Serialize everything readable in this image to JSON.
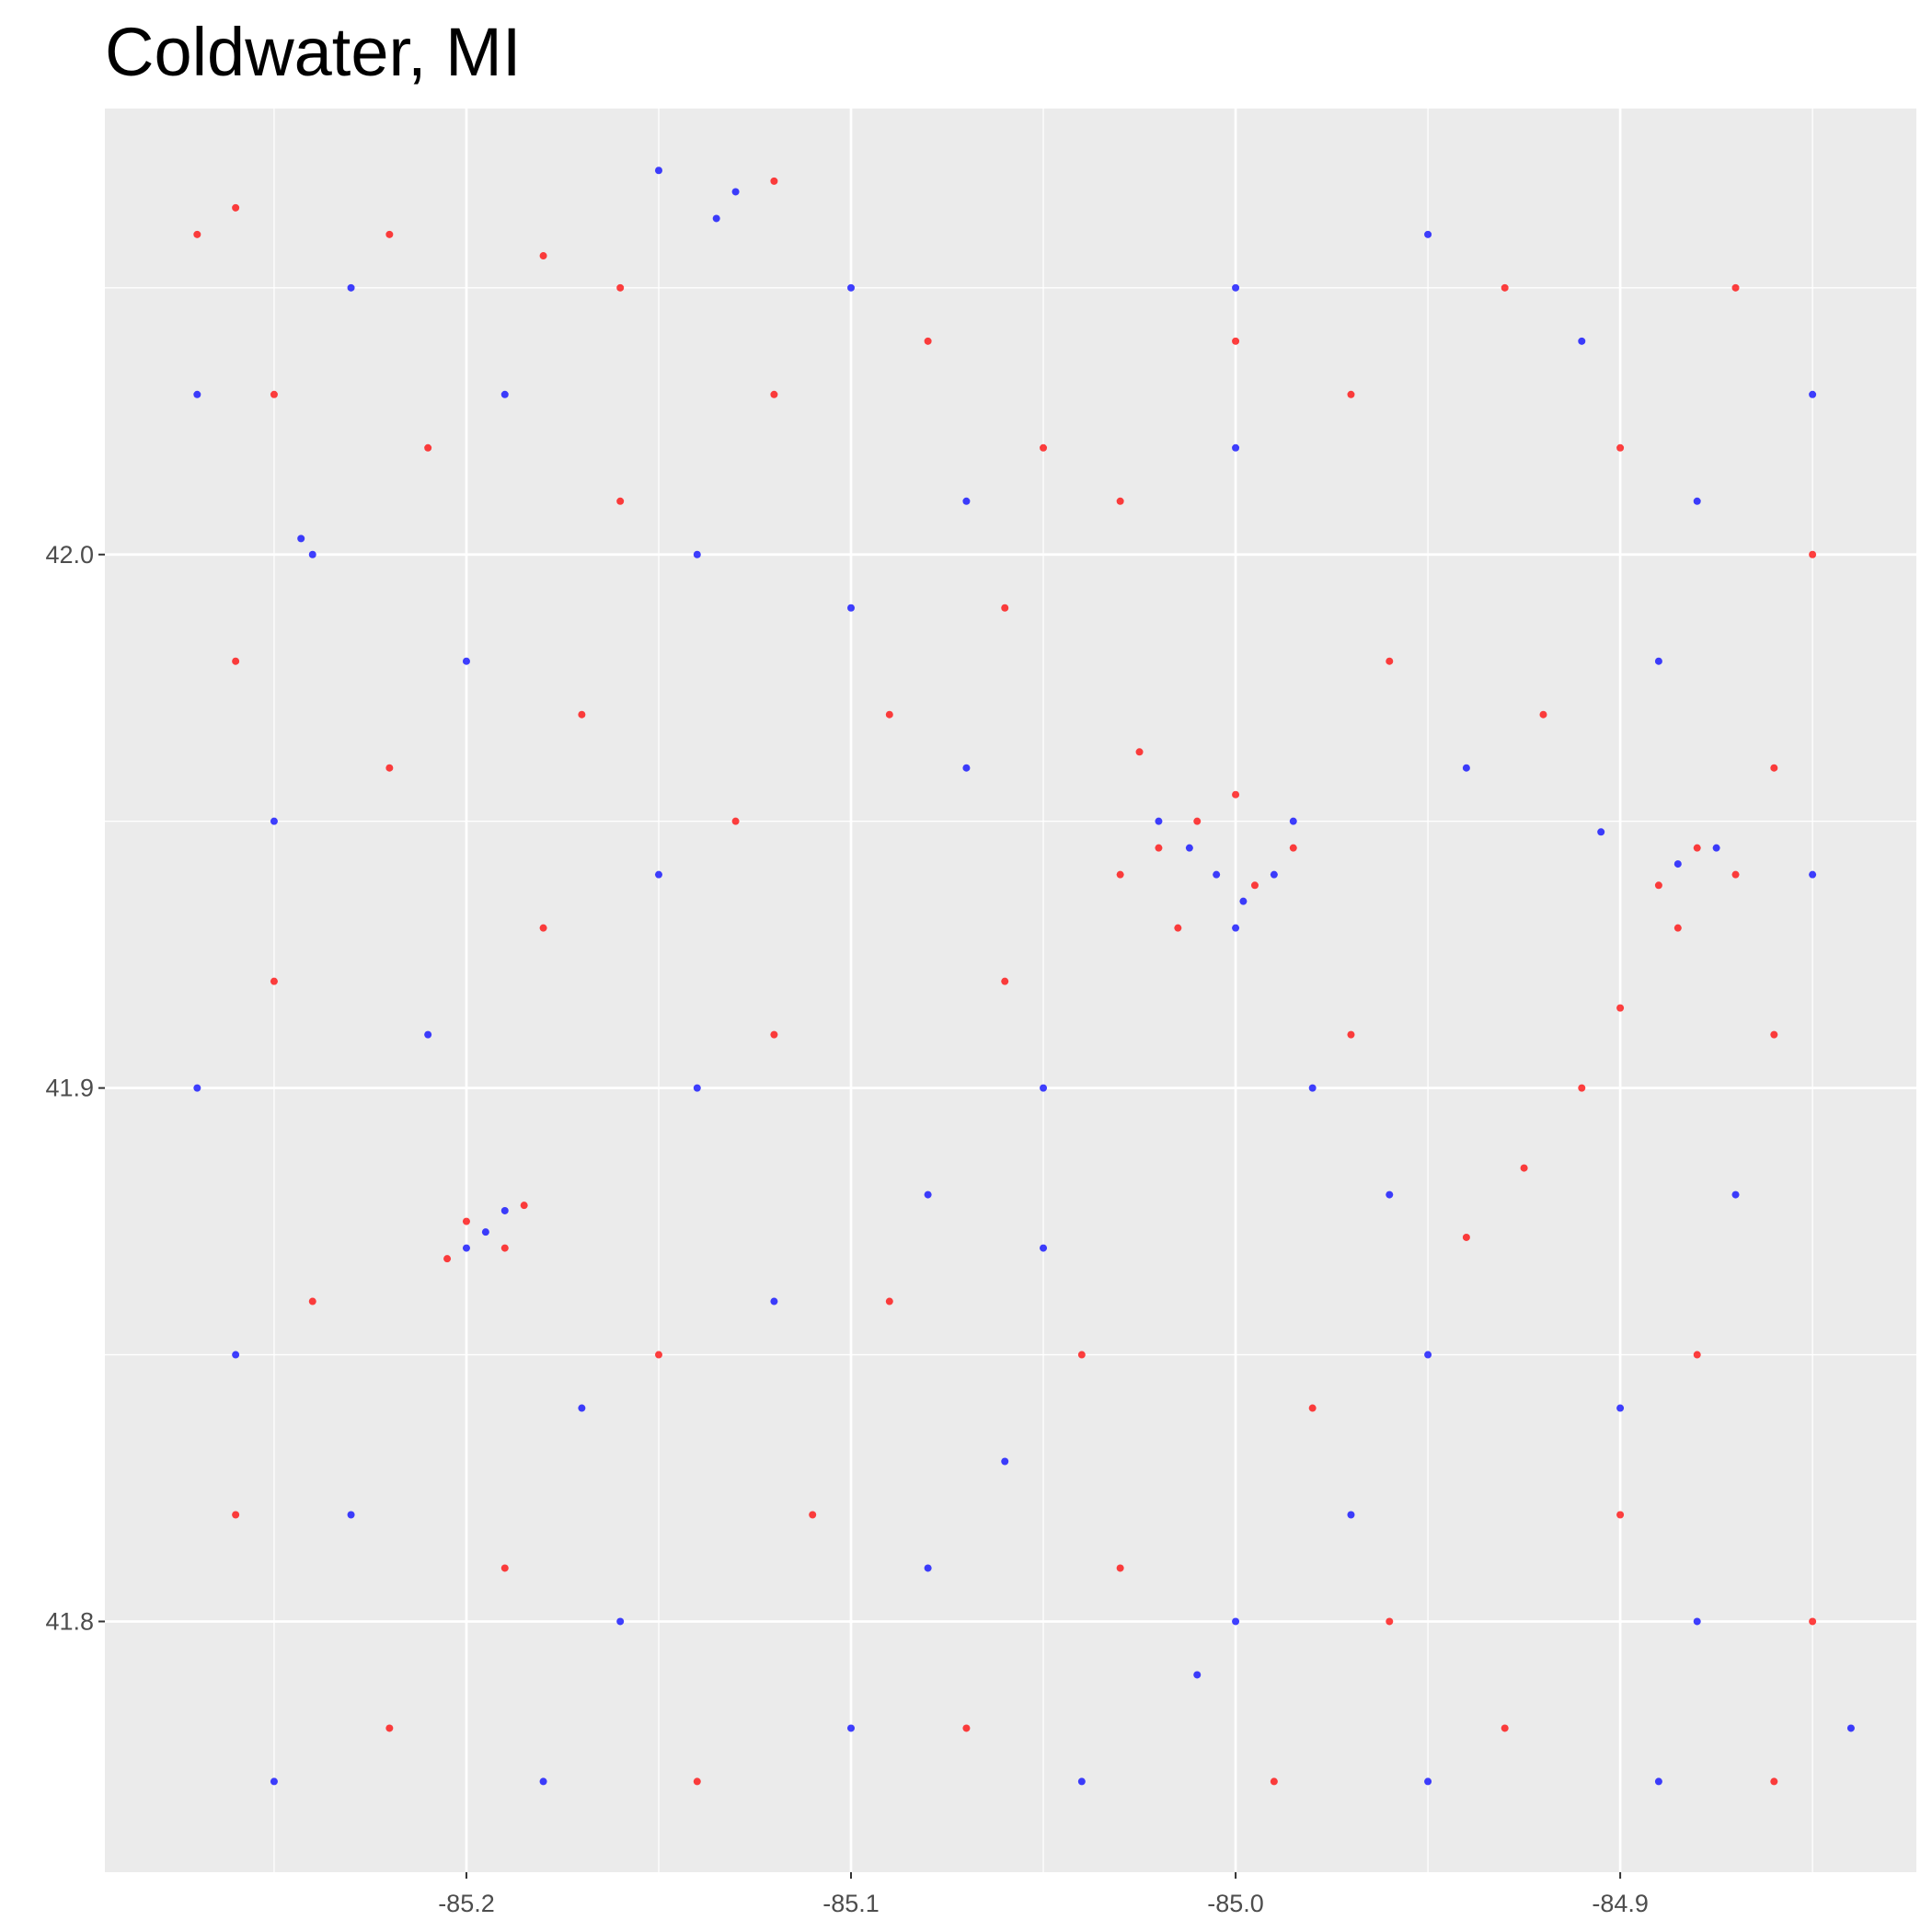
{
  "chart_data": {
    "type": "scatter",
    "title": "Coldwater, MI",
    "xlim": [
      -85.294,
      -84.823
    ],
    "ylim": [
      41.753,
      42.0836
    ],
    "xticks": [
      -85.2,
      -85.1,
      {
        "value": -85,
        "label": "-85.0"
      },
      -84.9
    ],
    "yticks": [
      41.8,
      41.9,
      {
        "value": 42,
        "label": "42.0"
      }
    ],
    "x_minor_ticks": [
      -85.25,
      -85.15,
      -85.05,
      -84.95,
      -84.85
    ],
    "y_minor_ticks": [
      41.85,
      41.95,
      42.05
    ],
    "grid": true,
    "series": [
      {
        "color": "#ff0000",
        "x": [
          -85.02,
          -85.01,
          -84.995,
          -85.03,
          -85.0,
          -84.985,
          -85.015,
          -85.025,
          -84.88,
          -84.87,
          -84.89,
          -85.2,
          -85.19,
          -85.205,
          -85.185,
          -84.94,
          -84.925,
          -84.91,
          -84.9,
          -84.885,
          -85.26,
          -85.22,
          -85.18,
          -85.16,
          -85.12,
          -85.27,
          -85.25,
          -85.21,
          -85.16,
          -85.12,
          -85.08,
          -85.05,
          -85.03,
          -85.0,
          -84.97,
          -84.93,
          -84.9,
          -84.87,
          -84.85,
          -85.26,
          -85.22,
          -85.17,
          -85.13,
          -85.09,
          -85.06,
          -84.96,
          -84.92,
          -84.86,
          -85.25,
          -85.18,
          -85.12,
          -85.06,
          -84.97,
          -84.86,
          -85.24,
          -85.15,
          -85.09,
          -85.04,
          -84.98,
          -84.88,
          -85.26,
          -85.19,
          -85.11,
          -85.03,
          -84.96,
          -84.9,
          -84.85,
          -85.22,
          -85.14,
          -85.07,
          -84.99,
          -84.93,
          -84.86
        ],
        "y": [
          41.945,
          41.95,
          41.938,
          41.94,
          41.955,
          41.945,
          41.93,
          41.963,
          41.945,
          41.94,
          41.938,
          41.875,
          41.87,
          41.868,
          41.878,
          41.872,
          41.885,
          41.9,
          41.915,
          41.93,
          42.065,
          42.06,
          42.056,
          42.05,
          42.07,
          42.06,
          42.03,
          42.02,
          42.01,
          42.03,
          42.04,
          42.02,
          42.01,
          42.04,
          42.03,
          42.05,
          42.02,
          42.05,
          42.0,
          41.98,
          41.96,
          41.97,
          41.95,
          41.97,
          41.99,
          41.98,
          41.97,
          41.96,
          41.92,
          41.93,
          41.91,
          41.92,
          41.91,
          41.91,
          41.86,
          41.85,
          41.86,
          41.85,
          41.84,
          41.85,
          41.82,
          41.81,
          41.82,
          41.81,
          41.8,
          41.82,
          41.8,
          41.78,
          41.77,
          41.78,
          41.77,
          41.78,
          41.77
        ]
      },
      {
        "color": "#0000ff",
        "x": [
          -85.005,
          -84.998,
          -85.012,
          -84.99,
          -85.0,
          -85.02,
          -84.985,
          -84.875,
          -84.885,
          -84.905,
          -85.195,
          -85.2,
          -85.19,
          -85.24,
          -85.243,
          -85.135,
          -85.13,
          -85.15,
          -85.0,
          -85.0,
          -84.98,
          -85.05,
          -85.05,
          -85.0,
          -85.01,
          -85.27,
          -85.23,
          -85.19,
          -85.14,
          -85.1,
          -85.07,
          -84.95,
          -84.91,
          -84.88,
          -84.85,
          -85.25,
          -85.2,
          -85.15,
          -85.1,
          -85.07,
          -84.94,
          -84.89,
          -84.85,
          -85.27,
          -85.21,
          -85.14,
          -85.08,
          -84.96,
          -84.87,
          -85.26,
          -85.17,
          -85.12,
          -85.06,
          -84.95,
          -84.9,
          -85.23,
          -85.16,
          -85.08,
          -84.97,
          -84.88,
          -85.25,
          -85.18,
          -85.1,
          -85.04,
          -84.95,
          -84.89,
          -84.84
        ],
        "y": [
          41.94,
          41.935,
          41.945,
          41.94,
          41.93,
          41.95,
          41.95,
          41.945,
          41.942,
          41.948,
          41.873,
          41.87,
          41.877,
          42.0,
          42.003,
          42.063,
          42.068,
          42.072,
          42.02,
          42.05,
          41.9,
          41.9,
          41.87,
          41.8,
          41.79,
          42.03,
          42.05,
          42.03,
          42.0,
          42.05,
          42.01,
          42.06,
          42.04,
          42.01,
          42.03,
          41.95,
          41.98,
          41.94,
          41.99,
          41.96,
          41.96,
          41.98,
          41.94,
          41.9,
          41.91,
          41.9,
          41.88,
          41.88,
          41.88,
          41.85,
          41.84,
          41.86,
          41.83,
          41.85,
          41.84,
          41.82,
          41.8,
          41.81,
          41.82,
          41.8,
          41.77,
          41.77,
          41.78,
          41.77,
          41.77,
          41.77,
          41.78
        ]
      }
    ]
  }
}
